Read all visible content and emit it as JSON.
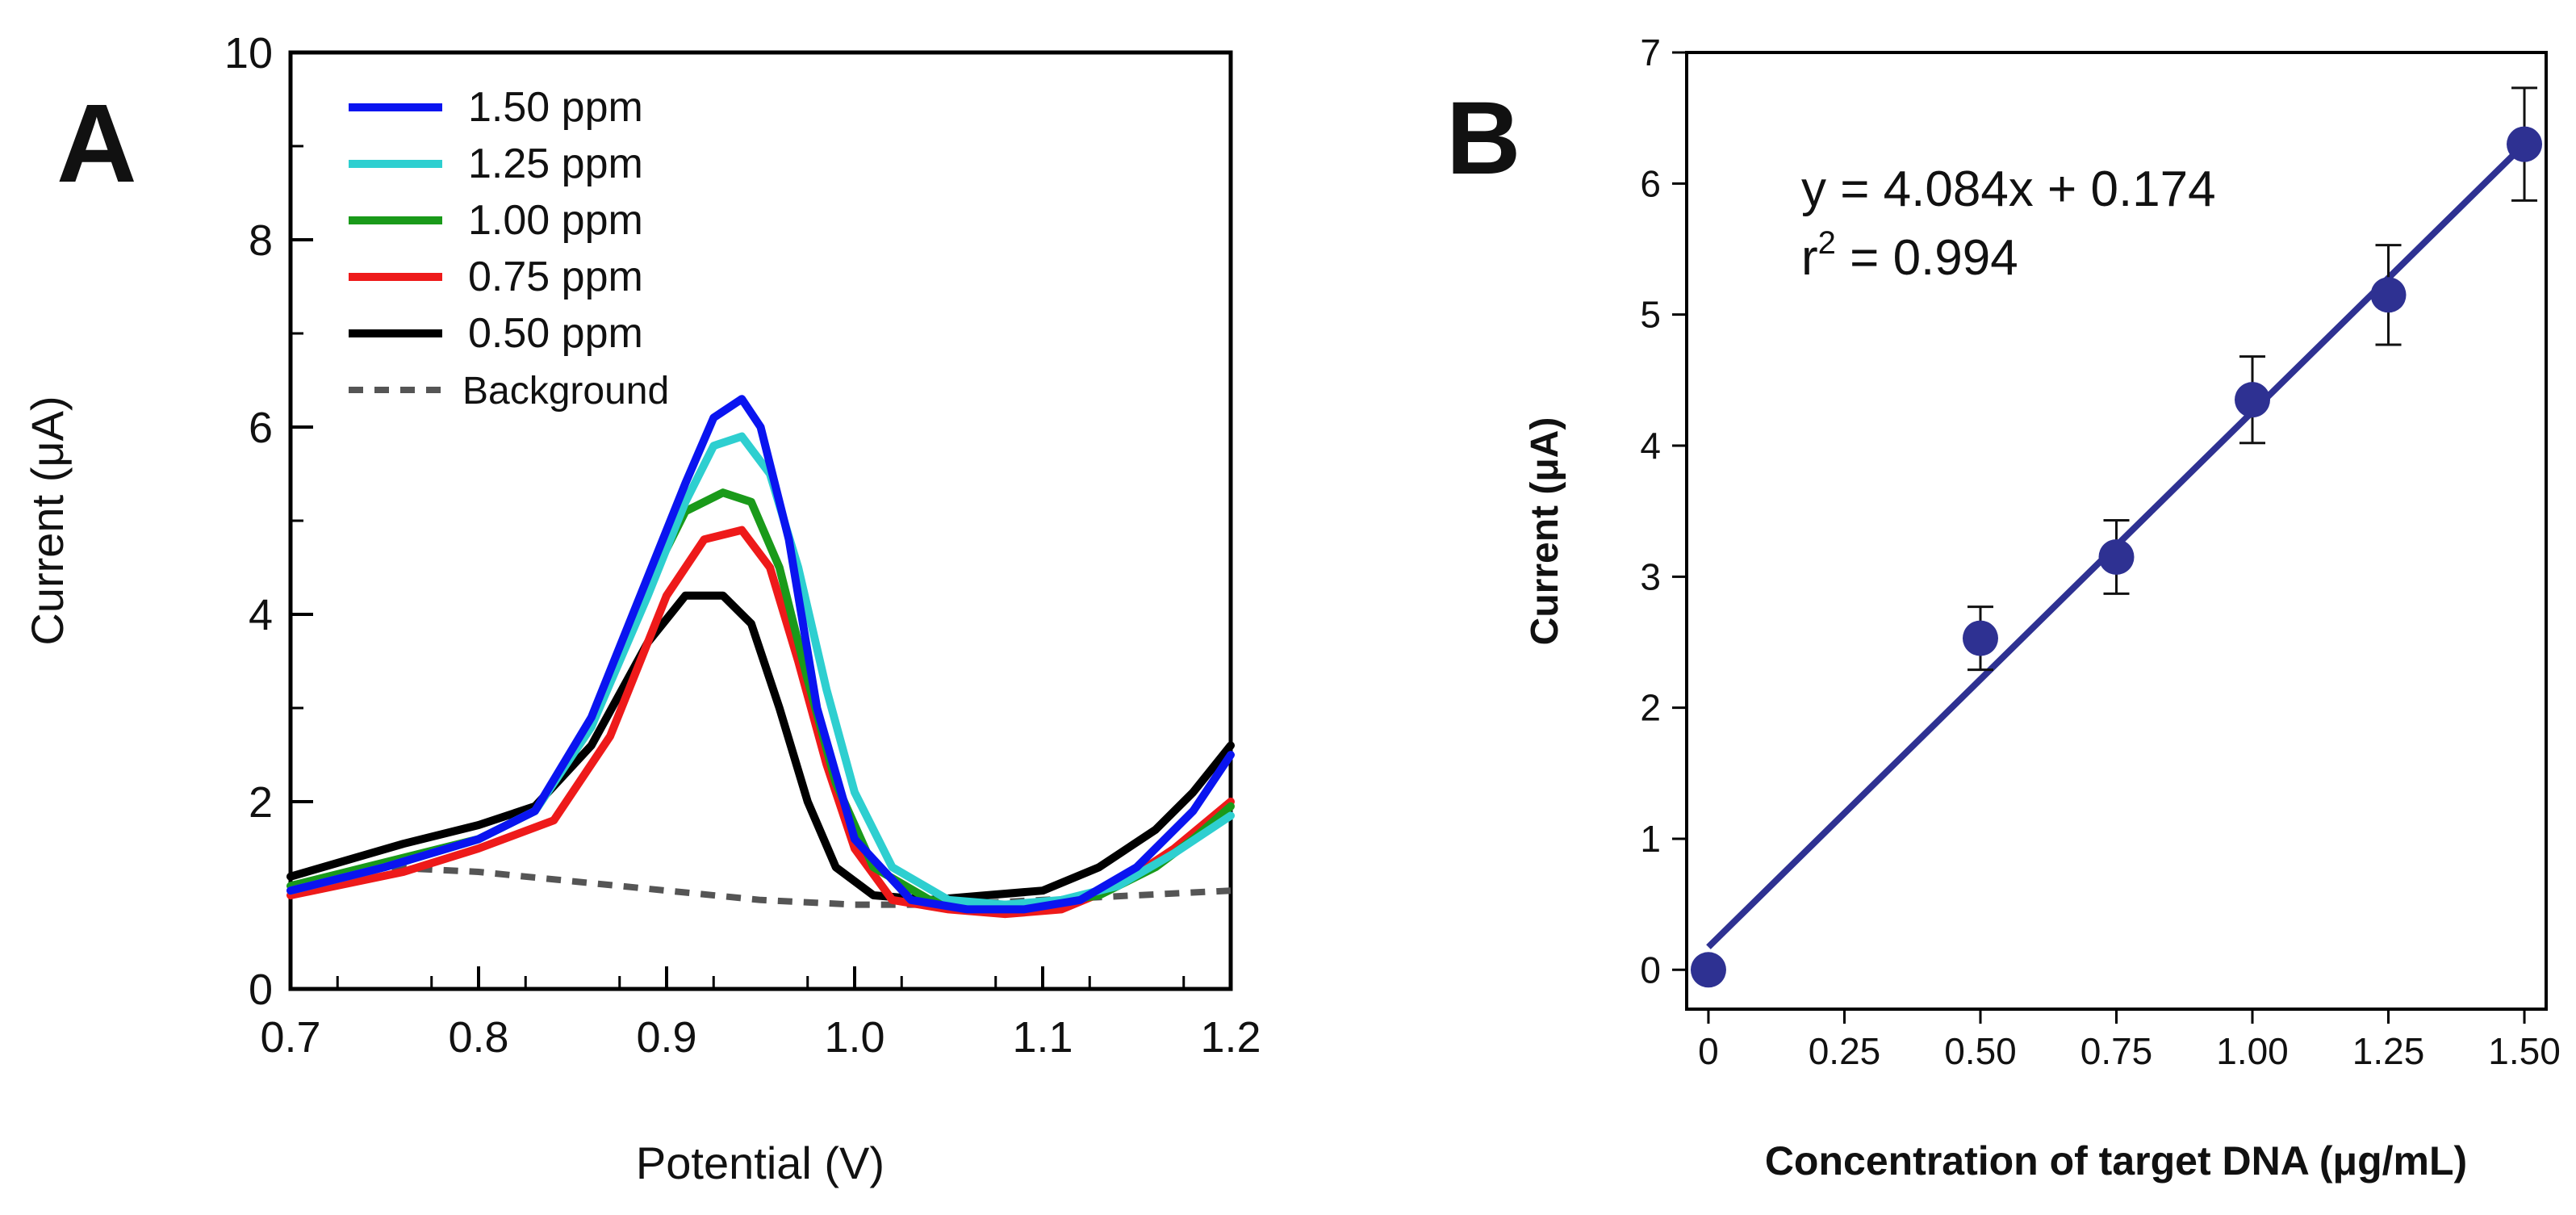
{
  "chart_data": [
    {
      "panel_label": "A",
      "type": "line",
      "xlabel": "Potential (V)",
      "ylabel": "Current (μA)",
      "xlim": [
        0.7,
        1.2
      ],
      "ylim": [
        0,
        10
      ],
      "x_ticks": [
        "0.7",
        "0.8",
        "0.9",
        "1.0",
        "1.1",
        "1.2"
      ],
      "y_ticks": [
        "0",
        "2",
        "4",
        "6",
        "8",
        "10"
      ],
      "legend_position": "top-left",
      "series": [
        {
          "name": "1.50 ppm",
          "color": "#0a14f0",
          "style": "solid",
          "x": [
            0.7,
            0.75,
            0.8,
            0.83,
            0.86,
            0.89,
            0.91,
            0.925,
            0.94,
            0.95,
            0.965,
            0.98,
            1.0,
            1.03,
            1.06,
            1.09,
            1.12,
            1.15,
            1.18,
            1.2
          ],
          "y": [
            1.05,
            1.3,
            1.6,
            1.9,
            2.9,
            4.4,
            5.4,
            6.1,
            6.3,
            6.0,
            4.8,
            3.0,
            1.6,
            0.95,
            0.85,
            0.85,
            0.95,
            1.3,
            1.9,
            2.5
          ]
        },
        {
          "name": "1.25 ppm",
          "color": "#2ecfd0",
          "style": "solid",
          "x": [
            0.7,
            0.75,
            0.8,
            0.83,
            0.86,
            0.89,
            0.91,
            0.925,
            0.94,
            0.955,
            0.97,
            0.985,
            1.0,
            1.02,
            1.05,
            1.08,
            1.11,
            1.14,
            1.17,
            1.2
          ],
          "y": [
            1.05,
            1.3,
            1.6,
            1.9,
            2.8,
            4.2,
            5.2,
            5.8,
            5.9,
            5.5,
            4.5,
            3.2,
            2.1,
            1.3,
            0.95,
            0.9,
            0.95,
            1.1,
            1.45,
            1.85
          ]
        },
        {
          "name": "1.00 ppm",
          "color": "#1a9a1a",
          "style": "solid",
          "x": [
            0.7,
            0.75,
            0.8,
            0.83,
            0.86,
            0.89,
            0.91,
            0.93,
            0.945,
            0.96,
            0.975,
            0.99,
            1.01,
            1.04,
            1.07,
            1.1,
            1.13,
            1.16,
            1.18,
            1.2
          ],
          "y": [
            1.1,
            1.35,
            1.6,
            1.9,
            2.8,
            4.3,
            5.1,
            5.3,
            5.2,
            4.5,
            3.3,
            2.2,
            1.3,
            0.95,
            0.9,
            0.9,
            1.0,
            1.3,
            1.6,
            1.95
          ]
        },
        {
          "name": "0.75 ppm",
          "color": "#ee1a1a",
          "style": "solid",
          "x": [
            0.7,
            0.76,
            0.8,
            0.84,
            0.87,
            0.9,
            0.92,
            0.94,
            0.955,
            0.97,
            0.985,
            1.0,
            1.02,
            1.05,
            1.08,
            1.11,
            1.14,
            1.17,
            1.2
          ],
          "y": [
            1.0,
            1.25,
            1.5,
            1.8,
            2.7,
            4.2,
            4.8,
            4.9,
            4.5,
            3.5,
            2.4,
            1.5,
            0.95,
            0.85,
            0.8,
            0.85,
            1.1,
            1.5,
            2.0
          ]
        },
        {
          "name": "0.50 ppm",
          "color": "#000000",
          "style": "solid",
          "x": [
            0.7,
            0.76,
            0.8,
            0.83,
            0.86,
            0.89,
            0.91,
            0.93,
            0.945,
            0.96,
            0.975,
            0.99,
            1.01,
            1.04,
            1.07,
            1.1,
            1.13,
            1.16,
            1.18,
            1.2
          ],
          "y": [
            1.2,
            1.55,
            1.75,
            1.95,
            2.6,
            3.7,
            4.2,
            4.2,
            3.9,
            3.0,
            2.0,
            1.3,
            1.0,
            0.95,
            1.0,
            1.05,
            1.3,
            1.7,
            2.1,
            2.6
          ]
        },
        {
          "name": "Background",
          "color": "#555555",
          "style": "dashed",
          "x": [
            0.7,
            0.75,
            0.8,
            0.85,
            0.9,
            0.95,
            1.0,
            1.05,
            1.1,
            1.15,
            1.2
          ],
          "y": [
            1.1,
            1.3,
            1.25,
            1.15,
            1.05,
            0.95,
            0.9,
            0.9,
            0.95,
            1.0,
            1.05
          ]
        }
      ]
    },
    {
      "panel_label": "B",
      "type": "scatter",
      "xlabel": "Concentration of target DNA (μg/mL)",
      "ylabel": "Current (μA)",
      "xlim": [
        -0.04,
        1.54
      ],
      "ylim": [
        -0.3,
        7
      ],
      "x_ticks": [
        "0",
        "0.25",
        "0.50",
        "0.75",
        "1.00",
        "1.25",
        "1.50"
      ],
      "y_ticks": [
        "0",
        "1",
        "2",
        "3",
        "4",
        "5",
        "6",
        "7"
      ],
      "color": "#2e3192",
      "series": [
        {
          "name": "data",
          "x": [
            0,
            0.5,
            0.75,
            1.0,
            1.25,
            1.5
          ],
          "y": [
            0,
            2.53,
            3.15,
            4.35,
            5.15,
            6.3
          ],
          "error": [
            0,
            0.24,
            0.28,
            0.33,
            0.38,
            0.43
          ]
        }
      ],
      "fit": {
        "slope": 4.084,
        "intercept": 0.174,
        "x_range": [
          0,
          1.5
        ]
      },
      "annotations": {
        "equation": "y = 4.084x + 0.174",
        "r2_base": "r",
        "r2_sup": "2",
        "r2_value": " = 0.994"
      }
    }
  ]
}
